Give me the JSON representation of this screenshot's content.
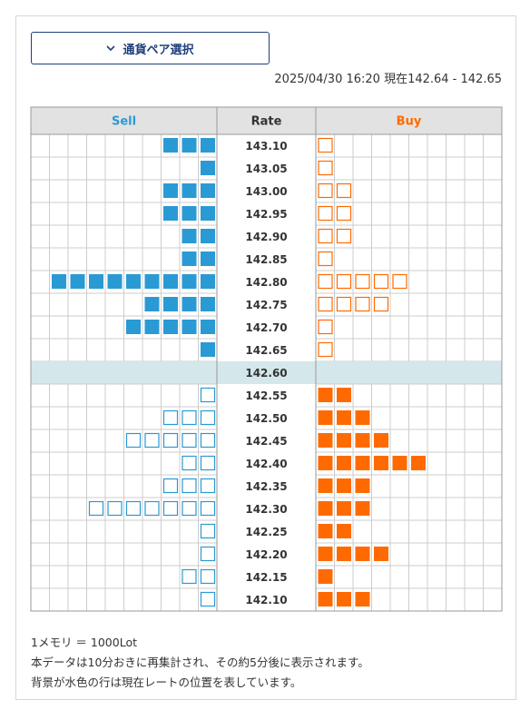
{
  "button": {
    "label": "通貨ペア選択"
  },
  "timestamp": "2025/04/30 16:20 現在142.64 - 142.65",
  "table": {
    "headers": [
      "Sell",
      "Rate",
      "Buy"
    ],
    "rows": [
      {
        "rate": "143.10",
        "sell": 3,
        "buy": 1
      },
      {
        "rate": "143.05",
        "sell": 1,
        "buy": 1
      },
      {
        "rate": "143.00",
        "sell": 3,
        "buy": 2
      },
      {
        "rate": "142.95",
        "sell": 3,
        "buy": 2
      },
      {
        "rate": "142.90",
        "sell": 2,
        "buy": 2
      },
      {
        "rate": "142.85",
        "sell": 2,
        "buy": 1
      },
      {
        "rate": "142.80",
        "sell": 9,
        "buy": 5
      },
      {
        "rate": "142.75",
        "sell": 4,
        "buy": 4
      },
      {
        "rate": "142.70",
        "sell": 5,
        "buy": 1
      },
      {
        "rate": "142.65",
        "sell": 1,
        "buy": 1
      },
      {
        "rate": "142.60",
        "sell": 0,
        "buy": 0,
        "highlight": true
      },
      {
        "rate": "142.55",
        "sell": 1,
        "buy": 2
      },
      {
        "rate": "142.50",
        "sell": 3,
        "buy": 3
      },
      {
        "rate": "142.45",
        "sell": 5,
        "buy": 4
      },
      {
        "rate": "142.40",
        "sell": 2,
        "buy": 6
      },
      {
        "rate": "142.35",
        "sell": 3,
        "buy": 3
      },
      {
        "rate": "142.30",
        "sell": 7,
        "buy": 3
      },
      {
        "rate": "142.25",
        "sell": 1,
        "buy": 2
      },
      {
        "rate": "142.20",
        "sell": 1,
        "buy": 4
      },
      {
        "rate": "142.15",
        "sell": 2,
        "buy": 1
      },
      {
        "rate": "142.10",
        "sell": 1,
        "buy": 3
      }
    ],
    "sell_color": "#2a9ad4",
    "buy_color": "#ff6a00",
    "highlight_color": "#d4e7ea"
  },
  "notes": [
    "1メモリ ＝ 1000Lot",
    "本データは10分おきに再集計され、その約5分後に表示されます。",
    "背景が水色の行は現在レートの位置を表しています。"
  ]
}
